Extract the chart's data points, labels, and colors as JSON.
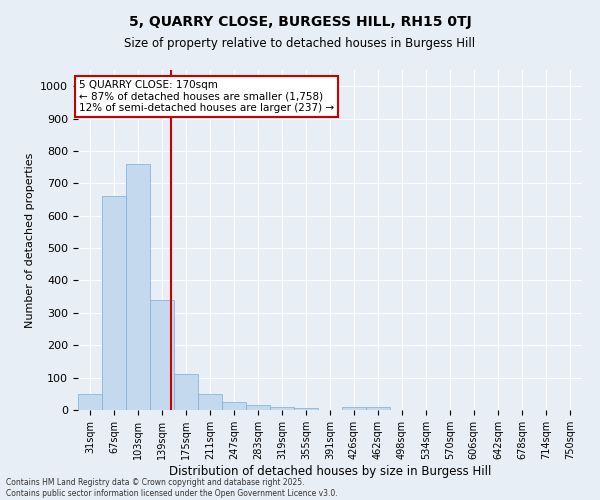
{
  "title1": "5, QUARRY CLOSE, BURGESS HILL, RH15 0TJ",
  "title2": "Size of property relative to detached houses in Burgess Hill",
  "xlabel": "Distribution of detached houses by size in Burgess Hill",
  "ylabel": "Number of detached properties",
  "annotation_line1": "5 QUARRY CLOSE: 170sqm",
  "annotation_line2": "← 87% of detached houses are smaller (1,758)",
  "annotation_line3": "12% of semi-detached houses are larger (237) →",
  "property_size": 170,
  "categories": [
    "31sqm",
    "67sqm",
    "103sqm",
    "139sqm",
    "175sqm",
    "211sqm",
    "247sqm",
    "283sqm",
    "319sqm",
    "355sqm",
    "391sqm",
    "426sqm",
    "462sqm",
    "498sqm",
    "534sqm",
    "570sqm",
    "606sqm",
    "642sqm",
    "678sqm",
    "714sqm",
    "750sqm"
  ],
  "bin_edges": [
    31,
    67,
    103,
    139,
    175,
    211,
    247,
    283,
    319,
    355,
    391,
    426,
    462,
    498,
    534,
    570,
    606,
    642,
    678,
    714,
    750
  ],
  "values": [
    50,
    660,
    760,
    340,
    110,
    50,
    25,
    15,
    10,
    5,
    0,
    10,
    10,
    0,
    0,
    0,
    0,
    0,
    0,
    0,
    0
  ],
  "bar_color": "#c5d9ee",
  "bar_edge_color": "#7aadd4",
  "vline_color": "#cc0000",
  "annotation_box_color": "#cc0000",
  "background_color": "#e8eef5",
  "grid_color": "#ffffff",
  "ylim": [
    0,
    1050
  ],
  "yticks": [
    0,
    100,
    200,
    300,
    400,
    500,
    600,
    700,
    800,
    900,
    1000
  ],
  "footnote1": "Contains HM Land Registry data © Crown copyright and database right 2025.",
  "footnote2": "Contains public sector information licensed under the Open Government Licence v3.0."
}
